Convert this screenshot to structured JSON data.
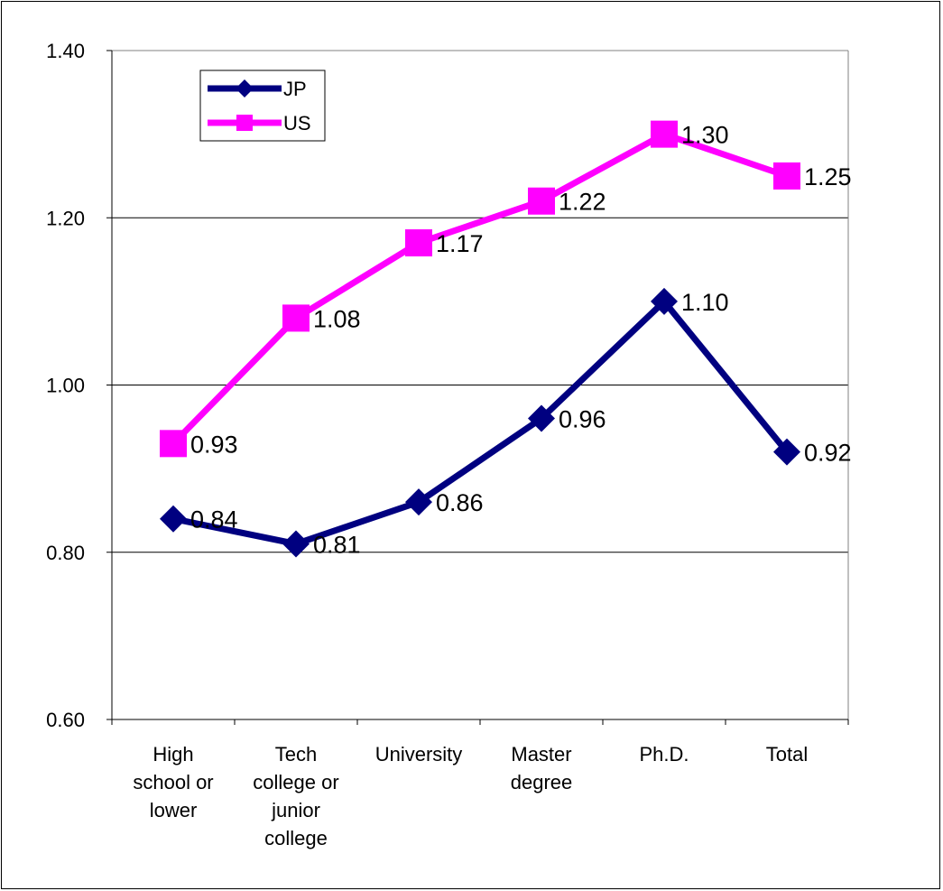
{
  "chart_data": {
    "type": "line",
    "categories": [
      [
        "High",
        "school or",
        "lower"
      ],
      [
        "Tech",
        "college or",
        "junior",
        "college"
      ],
      [
        "University"
      ],
      [
        "Master",
        "degree"
      ],
      [
        "Ph.D."
      ],
      [
        "Total"
      ]
    ],
    "series": [
      {
        "name": "JP",
        "values": [
          0.84,
          0.81,
          0.86,
          0.96,
          1.1,
          0.92
        ],
        "labels": [
          "0.84",
          "0.81",
          "0.86",
          "0.96",
          "1.10",
          "0.92"
        ],
        "color": "#000080",
        "marker": "diamond"
      },
      {
        "name": "US",
        "values": [
          0.93,
          1.08,
          1.17,
          1.22,
          1.3,
          1.25
        ],
        "labels": [
          "0.93",
          "1.08",
          "1.17",
          "1.22",
          "1.30",
          "1.25"
        ],
        "color": "#ff00ff",
        "marker": "square"
      }
    ],
    "ylim": [
      0.6,
      1.4
    ],
    "yticks": [
      "0.60",
      "0.80",
      "1.00",
      "1.20",
      "1.40"
    ],
    "grid": true,
    "legend_position": "top-left",
    "title": "",
    "xlabel": "",
    "ylabel": ""
  }
}
